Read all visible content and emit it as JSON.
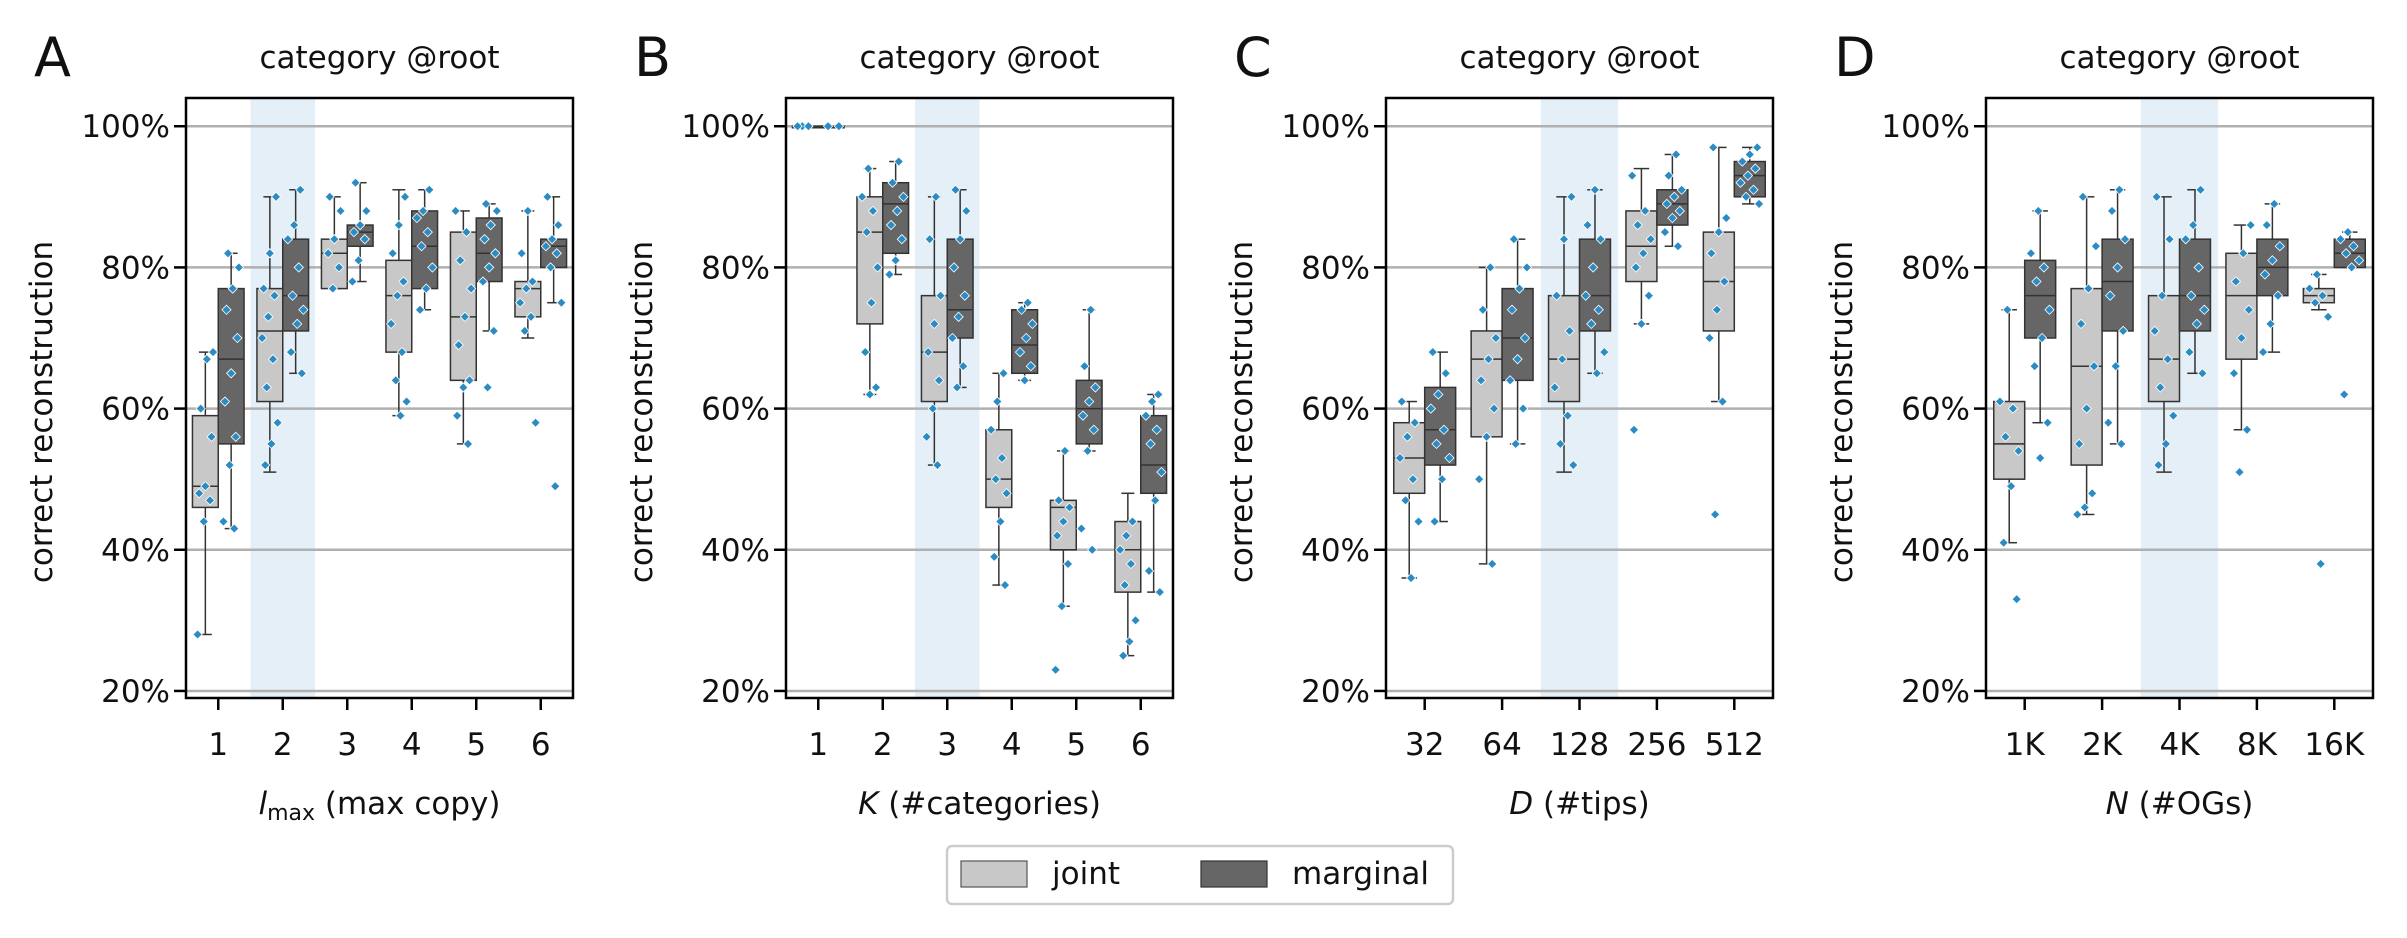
{
  "colors": {
    "joint": "#c8c8c8",
    "marginal": "#666666",
    "points": "#2b8cc4",
    "highlight": "#e4eff7",
    "grid": "#b0b0b0"
  },
  "legend": {
    "placement": "bottom-center",
    "joint": "joint",
    "marginal": "marginal"
  },
  "chart_data": [
    {
      "type": "box",
      "panel_label": "A",
      "title": "category @root",
      "xlabel_math": "l",
      "xlabel_sub": "max",
      "xlabel_rest": " (max copy)",
      "ylabel": "correct reconstruction",
      "yticks": [
        20,
        40,
        60,
        80,
        100
      ],
      "ytick_labels": [
        "20%",
        "40%",
        "60%",
        "80%",
        "100%"
      ],
      "ylim": [
        19,
        104
      ],
      "grid": "y",
      "highlight_category": "2",
      "categories": [
        "1",
        "2",
        "3",
        "4",
        "5",
        "6"
      ],
      "series": [
        {
          "name": "joint",
          "boxes": [
            {
              "q1": 46,
              "median": 49,
              "q3": 59,
              "whislo": 28,
              "whishi": 68
            },
            {
              "q1": 61,
              "median": 71,
              "q3": 77,
              "whislo": 51,
              "whishi": 90
            },
            {
              "q1": 77,
              "median": 82,
              "q3": 84,
              "whislo": 77,
              "whishi": 90
            },
            {
              "q1": 68,
              "median": 76,
              "q3": 81,
              "whislo": 59,
              "whishi": 91
            },
            {
              "q1": 64,
              "median": 73,
              "q3": 85,
              "whislo": 55,
              "whishi": 88
            },
            {
              "q1": 73,
              "median": 77,
              "q3": 78,
              "whislo": 70,
              "whishi": 88
            }
          ],
          "points": [
            [
              28,
              44,
              47,
              48,
              49,
              56,
              60,
              67,
              68
            ],
            [
              52,
              55,
              58,
              63,
              67,
              70,
              73,
              76,
              77,
              82,
              90
            ],
            [
              77,
              80,
              82,
              84,
              88,
              90
            ],
            [
              59,
              61,
              64,
              68,
              72,
              76,
              78,
              82,
              86,
              90
            ],
            [
              55,
              59,
              63,
              64,
              69,
              73,
              77,
              81,
              85,
              88
            ],
            [
              58,
              71,
              73,
              75,
              77,
              78,
              82,
              88
            ]
          ]
        },
        {
          "name": "marginal",
          "boxes": [
            {
              "q1": 55,
              "median": 67,
              "q3": 77,
              "whislo": 43,
              "whishi": 82
            },
            {
              "q1": 71,
              "median": 76,
              "q3": 84,
              "whislo": 65,
              "whishi": 91
            },
            {
              "q1": 83,
              "median": 85,
              "q3": 86,
              "whislo": 78,
              "whishi": 92
            },
            {
              "q1": 77,
              "median": 83,
              "q3": 88,
              "whislo": 74,
              "whishi": 91
            },
            {
              "q1": 78,
              "median": 82,
              "q3": 87,
              "whislo": 71,
              "whishi": 89
            },
            {
              "q1": 80,
              "median": 83,
              "q3": 84,
              "whislo": 75,
              "whishi": 90
            }
          ],
          "points": [
            [
              43,
              44,
              52,
              56,
              61,
              65,
              70,
              74,
              77,
              80,
              82
            ],
            [
              65,
              68,
              72,
              74,
              76,
              80,
              84,
              86,
              91
            ],
            [
              78,
              81,
              84,
              85,
              86,
              88,
              92
            ],
            [
              74,
              77,
              80,
              83,
              85,
              87,
              88,
              91
            ],
            [
              63,
              71,
              78,
              80,
              82,
              84,
              86,
              88,
              89
            ],
            [
              49,
              75,
              80,
              82,
              83,
              84,
              86,
              90
            ]
          ]
        }
      ]
    },
    {
      "type": "box",
      "panel_label": "B",
      "title": "category @root",
      "xlabel_math": "K",
      "xlabel_sub": "",
      "xlabel_rest": " (#categories)",
      "ylabel": "correct reconstruction",
      "yticks": [
        20,
        40,
        60,
        80,
        100
      ],
      "ytick_labels": [
        "20%",
        "40%",
        "60%",
        "80%",
        "100%"
      ],
      "ylim": [
        19,
        104
      ],
      "grid": "y",
      "highlight_category": "3",
      "categories": [
        "1",
        "2",
        "3",
        "4",
        "5",
        "6"
      ],
      "series": [
        {
          "name": "joint",
          "boxes": [
            {
              "q1": 100,
              "median": 100,
              "q3": 100,
              "whislo": 100,
              "whishi": 100
            },
            {
              "q1": 72,
              "median": 85,
              "q3": 90,
              "whislo": 62,
              "whishi": 94
            },
            {
              "q1": 61,
              "median": 68,
              "q3": 76,
              "whislo": 52,
              "whishi": 90
            },
            {
              "q1": 46,
              "median": 50,
              "q3": 57,
              "whislo": 35,
              "whishi": 65
            },
            {
              "q1": 40,
              "median": 46,
              "q3": 47,
              "whislo": 32,
              "whishi": 54
            },
            {
              "q1": 34,
              "median": 40,
              "q3": 44,
              "whislo": 25,
              "whishi": 48
            }
          ],
          "points": [
            [
              100,
              100,
              100
            ],
            [
              62,
              63,
              68,
              75,
              80,
              85,
              88,
              90,
              94
            ],
            [
              52,
              56,
              60,
              64,
              68,
              72,
              76,
              84,
              90
            ],
            [
              35,
              39,
              44,
              48,
              50,
              53,
              57,
              61,
              65
            ],
            [
              23,
              32,
              38,
              42,
              44,
              46,
              47,
              54
            ],
            [
              25,
              27,
              30,
              35,
              38,
              40,
              42,
              44
            ]
          ]
        },
        {
          "name": "marginal",
          "boxes": [
            {
              "q1": 100,
              "median": 100,
              "q3": 100,
              "whislo": 100,
              "whishi": 100
            },
            {
              "q1": 82,
              "median": 89,
              "q3": 92,
              "whislo": 79,
              "whishi": 95
            },
            {
              "q1": 70,
              "median": 74,
              "q3": 84,
              "whislo": 63,
              "whishi": 91
            },
            {
              "q1": 65,
              "median": 69,
              "q3": 74,
              "whislo": 64,
              "whishi": 75
            },
            {
              "q1": 55,
              "median": 60,
              "q3": 64,
              "whislo": 54,
              "whishi": 74
            },
            {
              "q1": 48,
              "median": 52,
              "q3": 59,
              "whislo": 34,
              "whishi": 62
            }
          ],
          "points": [
            [
              100,
              100
            ],
            [
              79,
              81,
              84,
              86,
              88,
              90,
              92,
              95
            ],
            [
              63,
              66,
              70,
              73,
              76,
              80,
              84,
              88,
              91
            ],
            [
              64,
              66,
              68,
              70,
              72,
              74,
              75
            ],
            [
              40,
              43,
              54,
              57,
              59,
              61,
              63,
              66,
              74
            ],
            [
              34,
              37,
              47,
              51,
              55,
              57,
              59,
              61,
              62
            ]
          ]
        }
      ]
    },
    {
      "type": "box",
      "panel_label": "C",
      "title": "category @root",
      "xlabel_math": "D",
      "xlabel_sub": "",
      "xlabel_rest": " (#tips)",
      "ylabel": "correct reconstruction",
      "yticks": [
        20,
        40,
        60,
        80,
        100
      ],
      "ytick_labels": [
        "20%",
        "40%",
        "60%",
        "80%",
        "100%"
      ],
      "ylim": [
        19,
        104
      ],
      "grid": "y",
      "highlight_category": "128",
      "categories": [
        "32",
        "64",
        "128",
        "256",
        "512"
      ],
      "series": [
        {
          "name": "joint",
          "boxes": [
            {
              "q1": 48,
              "median": 53,
              "q3": 58,
              "whislo": 36,
              "whishi": 61
            },
            {
              "q1": 56,
              "median": 67,
              "q3": 71,
              "whislo": 38,
              "whishi": 80
            },
            {
              "q1": 61,
              "median": 67,
              "q3": 76,
              "whislo": 51,
              "whishi": 90
            },
            {
              "q1": 78,
              "median": 83,
              "q3": 88,
              "whislo": 72,
              "whishi": 94
            },
            {
              "q1": 71,
              "median": 78,
              "q3": 85,
              "whislo": 61,
              "whishi": 97
            }
          ],
          "points": [
            [
              36,
              44,
              47,
              50,
              53,
              56,
              58,
              61
            ],
            [
              38,
              50,
              56,
              60,
              64,
              67,
              70,
              74,
              80
            ],
            [
              52,
              55,
              59,
              63,
              67,
              71,
              76,
              84,
              90
            ],
            [
              57,
              72,
              76,
              80,
              82,
              84,
              86,
              88,
              93
            ],
            [
              45,
              61,
              70,
              74,
              78,
              82,
              85,
              87,
              97
            ]
          ]
        },
        {
          "name": "marginal",
          "boxes": [
            {
              "q1": 52,
              "median": 57,
              "q3": 63,
              "whislo": 44,
              "whishi": 68
            },
            {
              "q1": 64,
              "median": 70,
              "q3": 77,
              "whislo": 55,
              "whishi": 84
            },
            {
              "q1": 71,
              "median": 76,
              "q3": 84,
              "whislo": 65,
              "whishi": 91
            },
            {
              "q1": 86,
              "median": 89,
              "q3": 91,
              "whislo": 83,
              "whishi": 96
            },
            {
              "q1": 90,
              "median": 93,
              "q3": 95,
              "whislo": 89,
              "whishi": 97
            }
          ],
          "points": [
            [
              44,
              50,
              53,
              55,
              57,
              60,
              62,
              65,
              68
            ],
            [
              55,
              60,
              64,
              67,
              70,
              74,
              77,
              80,
              84
            ],
            [
              65,
              68,
              72,
              74,
              76,
              80,
              84,
              86,
              91
            ],
            [
              83,
              85,
              87,
              88,
              89,
              90,
              91,
              93,
              96
            ],
            [
              89,
              90,
              91,
              92,
              93,
              94,
              95,
              96,
              97
            ]
          ]
        }
      ]
    },
    {
      "type": "box",
      "panel_label": "D",
      "title": "category @root",
      "xlabel_math": "N",
      "xlabel_sub": "",
      "xlabel_rest": " (#OGs)",
      "ylabel": "correct reconstruction",
      "yticks": [
        20,
        40,
        60,
        80,
        100
      ],
      "ytick_labels": [
        "20%",
        "40%",
        "60%",
        "80%",
        "100%"
      ],
      "ylim": [
        19,
        104
      ],
      "grid": "y",
      "highlight_category": "4K",
      "categories": [
        "1K",
        "2K",
        "4K",
        "8K",
        "16K"
      ],
      "series": [
        {
          "name": "joint",
          "boxes": [
            {
              "q1": 50,
              "median": 55,
              "q3": 61,
              "whislo": 41,
              "whishi": 74
            },
            {
              "q1": 52,
              "median": 66,
              "q3": 77,
              "whislo": 45,
              "whishi": 90
            },
            {
              "q1": 61,
              "median": 67,
              "q3": 76,
              "whislo": 51,
              "whishi": 90
            },
            {
              "q1": 67,
              "median": 76,
              "q3": 82,
              "whislo": 57,
              "whishi": 86
            },
            {
              "q1": 75,
              "median": 76,
              "q3": 77,
              "whislo": 74,
              "whishi": 79
            }
          ],
          "points": [
            [
              33,
              41,
              49,
              54,
              56,
              60,
              61,
              74
            ],
            [
              45,
              46,
              48,
              55,
              60,
              66,
              72,
              77,
              83,
              90
            ],
            [
              52,
              55,
              59,
              63,
              67,
              71,
              76,
              84,
              90
            ],
            [
              51,
              57,
              65,
              70,
              74,
              78,
              82,
              86
            ],
            [
              38,
              73,
              75,
              76,
              77,
              79
            ]
          ]
        },
        {
          "name": "marginal",
          "boxes": [
            {
              "q1": 70,
              "median": 76,
              "q3": 81,
              "whislo": 58,
              "whishi": 88
            },
            {
              "q1": 71,
              "median": 78,
              "q3": 84,
              "whislo": 55,
              "whishi": 91
            },
            {
              "q1": 71,
              "median": 76,
              "q3": 84,
              "whislo": 65,
              "whishi": 91
            },
            {
              "q1": 76,
              "median": 80,
              "q3": 84,
              "whislo": 68,
              "whishi": 89
            },
            {
              "q1": 80,
              "median": 82,
              "q3": 84,
              "whislo": 80,
              "whishi": 85
            }
          ],
          "points": [
            [
              53,
              58,
              66,
              70,
              74,
              78,
              80,
              82,
              88
            ],
            [
              55,
              58,
              66,
              71,
              76,
              80,
              84,
              88,
              91
            ],
            [
              65,
              68,
              72,
              74,
              76,
              80,
              84,
              86,
              91
            ],
            [
              68,
              72,
              76,
              79,
              81,
              83,
              86,
              89
            ],
            [
              62,
              80,
              81,
              82,
              83,
              84,
              85
            ]
          ]
        }
      ]
    }
  ]
}
